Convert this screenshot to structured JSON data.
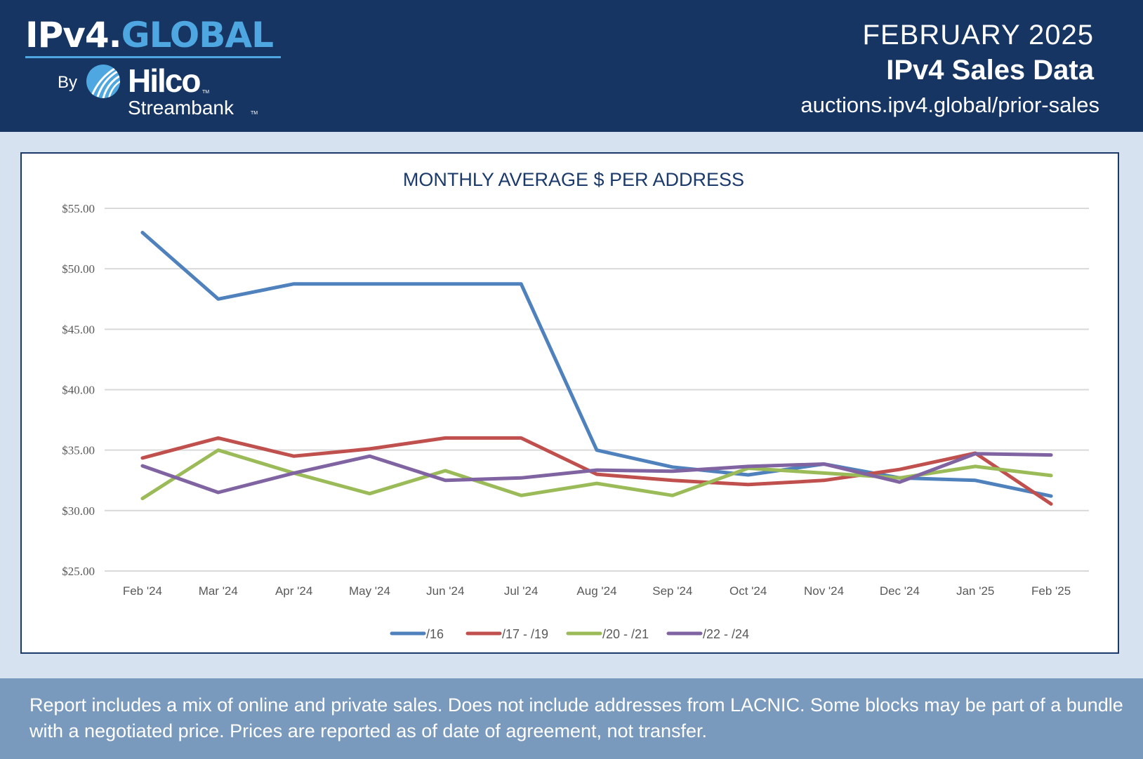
{
  "header": {
    "logo_prefix": "IPv4.",
    "logo_accent": "GLOBAL",
    "by_label": "By",
    "brand_name": "Hilco",
    "brand_sub": "Streambank",
    "trademark": "TM",
    "month": "FEBRUARY 2025",
    "title": "IPv4 Sales Data",
    "url": "auctions.ipv4.global/prior-sales"
  },
  "colors": {
    "header_bg": "#163563",
    "accent": "#4ea7e1",
    "page_bg": "#d6e2f0",
    "footer_bg": "#7a9abd"
  },
  "chart_data": {
    "type": "line",
    "title": "MONTHLY AVERAGE $ PER ADDRESS",
    "xlabel": "",
    "ylabel": "",
    "ylim": [
      25,
      55
    ],
    "yticks": [
      25,
      30,
      35,
      40,
      45,
      50,
      55
    ],
    "ytick_labels": [
      "$25.00",
      "$30.00",
      "$35.00",
      "$40.00",
      "$45.00",
      "$50.00",
      "$55.00"
    ],
    "grid": true,
    "legend": "bottom",
    "categories": [
      "Feb '24",
      "Mar '24",
      "Apr '24",
      "May '24",
      "Jun '24",
      "Jul '24",
      "Aug '24",
      "Sep '24",
      "Oct '24",
      "Nov '24",
      "Dec '24",
      "Jan '25",
      "Feb '25"
    ],
    "series": [
      {
        "name": "/16",
        "color": "#4f81bd",
        "values": [
          53.0,
          47.5,
          48.75,
          48.75,
          48.75,
          48.75,
          35.0,
          33.6,
          32.95,
          33.85,
          32.7,
          32.5,
          31.2
        ]
      },
      {
        "name": "/17 - /19",
        "color": "#c0504d",
        "values": [
          34.35,
          36.0,
          34.5,
          35.1,
          36.0,
          36.0,
          33.0,
          32.5,
          32.15,
          32.5,
          33.4,
          34.75,
          30.55
        ]
      },
      {
        "name": "/20 - /21",
        "color": "#9bbb59",
        "values": [
          31.0,
          35.0,
          33.1,
          31.4,
          33.3,
          31.25,
          32.25,
          31.25,
          33.5,
          33.1,
          32.7,
          33.65,
          32.9
        ]
      },
      {
        "name": "/22 - /24",
        "color": "#8064a2",
        "values": [
          33.7,
          31.5,
          33.1,
          34.5,
          32.5,
          32.7,
          33.35,
          33.25,
          33.65,
          33.85,
          32.35,
          34.7,
          34.6
        ]
      }
    ]
  },
  "footer": {
    "note": "Report includes a mix of online and private sales. Does not include addresses from LACNIC. Some blocks may be part of a bundle with a negotiated price. Prices are reported as of date of agreement, not transfer."
  }
}
